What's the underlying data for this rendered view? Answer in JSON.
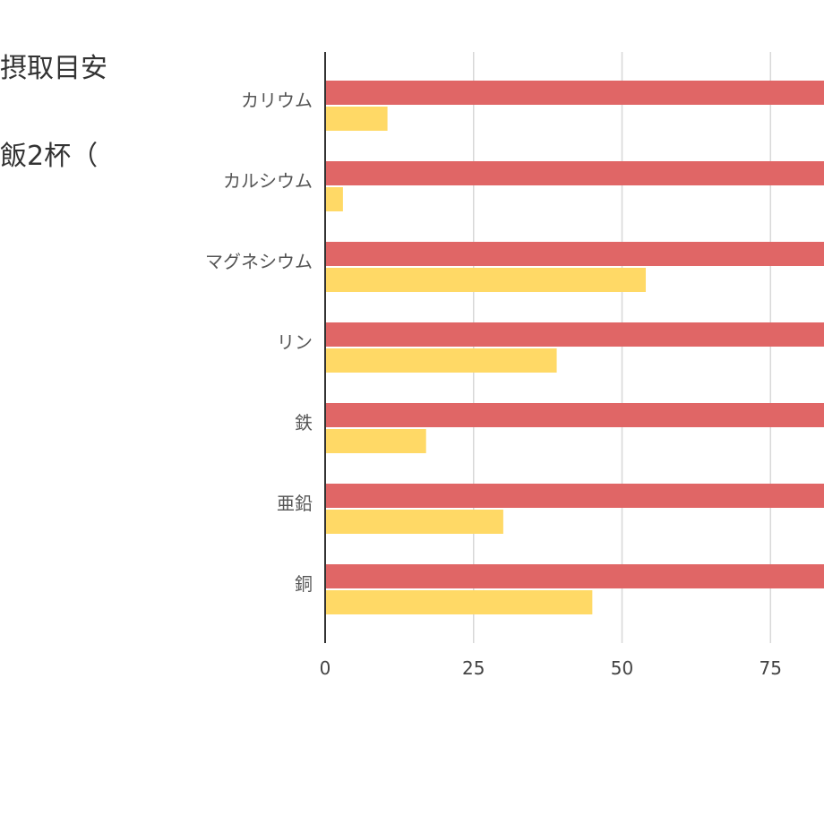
{
  "chart_data": {
    "type": "bar",
    "orientation": "horizontal",
    "categories": [
      "カリウム",
      "カルシウム",
      "マグネシウム",
      "リン",
      "鉄",
      "亜鉛",
      "銅"
    ],
    "series": [
      {
        "values": [
          100,
          100,
          100,
          100,
          100,
          100,
          100
        ],
        "color": "#e06666"
      },
      {
        "values": [
          10.5,
          3,
          54,
          39,
          17,
          30,
          45
        ],
        "color": "#ffd966"
      }
    ],
    "legend_fragments": [
      "摂取目安",
      "飯2杯（"
    ],
    "xticks": [
      0,
      25,
      50,
      75
    ],
    "xlim": [
      0,
      100
    ],
    "grid": true,
    "legend_position": "top-left"
  }
}
